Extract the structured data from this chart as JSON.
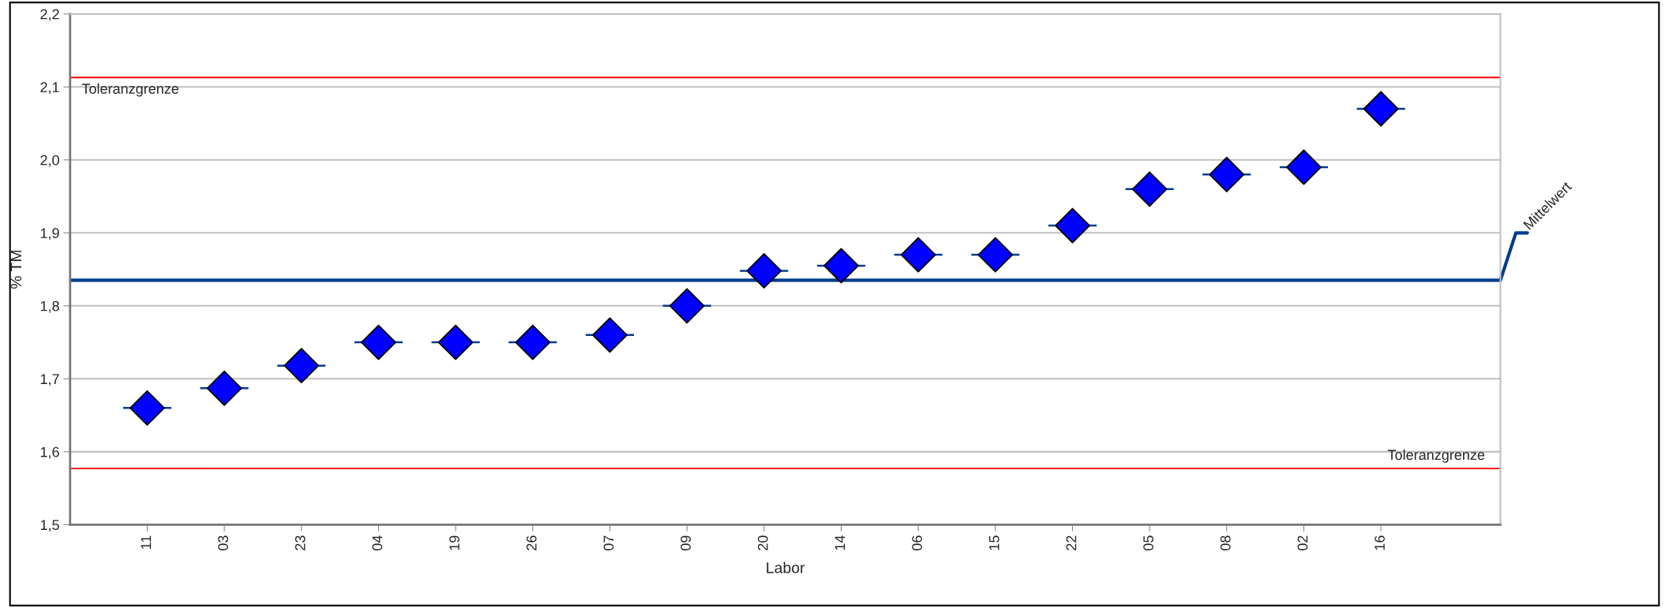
{
  "chart_data": {
    "type": "scatter",
    "xlabel": "Labor",
    "ylabel": "% TM",
    "categories": [
      "11",
      "03",
      "23",
      "04",
      "19",
      "26",
      "07",
      "09",
      "20",
      "14",
      "06",
      "15",
      "22",
      "05",
      "08",
      "02",
      "16"
    ],
    "values": [
      1.66,
      1.687,
      1.718,
      1.75,
      1.75,
      1.75,
      1.76,
      1.8,
      1.848,
      1.855,
      1.87,
      1.87,
      1.91,
      1.96,
      1.98,
      1.99,
      2.07
    ],
    "color": "#0000ff",
    "marker": "diamond",
    "ylim": [
      1.5,
      2.2
    ],
    "yticks": [
      {
        "value": 1.5,
        "label": "1,5"
      },
      {
        "value": 1.6,
        "label": "1,6"
      },
      {
        "value": 1.7,
        "label": "1,7"
      },
      {
        "value": 1.8,
        "label": "1,8"
      },
      {
        "value": 1.9,
        "label": "1,9"
      },
      {
        "value": 2.0,
        "label": "2,0"
      },
      {
        "value": 2.1,
        "label": "2,1"
      },
      {
        "value": 2.2,
        "label": "2,2"
      }
    ],
    "grid": "y",
    "ref_lines": [
      {
        "axis": "y",
        "value": 2.113,
        "label": "Toleranzgrenze",
        "color": "#ff0000"
      },
      {
        "axis": "y",
        "value": 1.577,
        "label": "Toleranzgrenze",
        "color": "#ff0000"
      },
      {
        "axis": "y",
        "value": 1.835,
        "label": "Mittelwert",
        "color": "#003c8c"
      }
    ]
  }
}
